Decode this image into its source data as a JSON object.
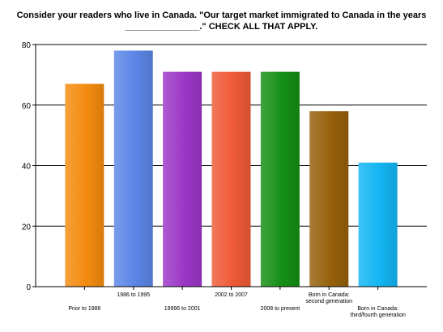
{
  "chart_data": {
    "type": "bar",
    "title_lines": [
      "Consider your readers who live in Canada. \"Our target market immigrated to Canada in the years",
      "_______________.\" CHECK ALL THAT APPLY."
    ],
    "categories": [
      [
        "Prior to 1986"
      ],
      [
        "1986 to 1995"
      ],
      [
        "19996 to 2001"
      ],
      [
        "2002 to 2007"
      ],
      [
        "2008 to present"
      ],
      [
        "Born in Canada:",
        "second generation"
      ],
      [
        "Born in Canada:",
        "third/fourth generation"
      ]
    ],
    "values": [
      67,
      78,
      71,
      71,
      71,
      58,
      41
    ],
    "colors": [
      "#f48b10",
      "#5b86e6",
      "#9b37c7",
      "#ef5a37",
      "#158f15",
      "#96600a",
      "#13b6f3"
    ],
    "ylim": [
      0,
      80
    ],
    "yticks": [
      0,
      20,
      40,
      60,
      80
    ],
    "grid": true,
    "legend": "none"
  }
}
